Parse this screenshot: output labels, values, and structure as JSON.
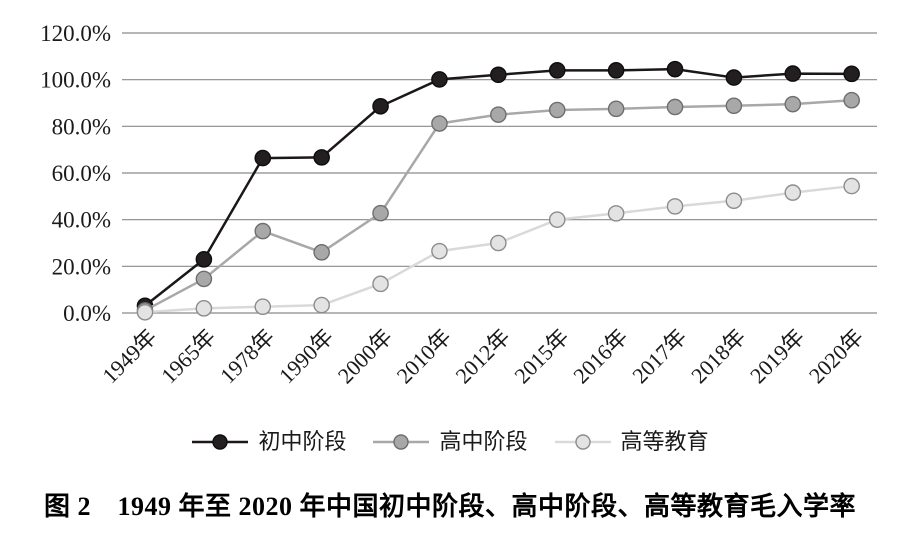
{
  "figure": {
    "caption": "图 2　1949 年至 2020 年中国初中阶段、高中阶段、高等教育毛入学率"
  },
  "colors": {
    "background": "#ffffff",
    "grid": "#8a8a8a",
    "axis_text": "#1a1a1a"
  },
  "chart_data": {
    "type": "line",
    "title": "",
    "xlabel": "",
    "ylabel": "",
    "ylim": [
      0,
      120
    ],
    "grid": "horizontal",
    "legend_position": "bottom",
    "categories": [
      "1949年",
      "1965年",
      "1978年",
      "1990年",
      "2000年",
      "2010年",
      "2012年",
      "2015年",
      "2016年",
      "2017年",
      "2018年",
      "2019年",
      "2020年"
    ],
    "y_ticks": [
      {
        "value": 0,
        "label": "0.0%"
      },
      {
        "value": 20,
        "label": "20.0%"
      },
      {
        "value": 40,
        "label": "40.0%"
      },
      {
        "value": 60,
        "label": "60.0%"
      },
      {
        "value": 80,
        "label": "80.0%"
      },
      {
        "value": 100,
        "label": "100.0%"
      },
      {
        "value": 120,
        "label": "120.0%"
      }
    ],
    "series": [
      {
        "name": "初中阶段",
        "values": [
          3.1,
          23.0,
          66.4,
          66.7,
          88.6,
          100.1,
          102.1,
          104.0,
          104.0,
          104.5,
          100.9,
          102.6,
          102.5
        ],
        "line_color": "#1c1719",
        "marker_fill": "#231f20",
        "marker_stroke": "#0d0d0d"
      },
      {
        "name": "高中阶段",
        "values": [
          1.1,
          14.6,
          35.1,
          26.0,
          42.8,
          81.2,
          85.0,
          87.0,
          87.5,
          88.3,
          88.8,
          89.5,
          91.2
        ],
        "line_color": "#a8a8a8",
        "marker_fill": "#a8a8a8",
        "marker_stroke": "#6e6e6e"
      },
      {
        "name": "高等教育",
        "values": [
          0.3,
          2.0,
          2.7,
          3.4,
          12.5,
          26.5,
          30.0,
          40.0,
          42.7,
          45.7,
          48.1,
          51.6,
          54.4
        ],
        "line_color": "#d9d9d9",
        "marker_fill": "#e3e3e3",
        "marker_stroke": "#8c8c8c"
      }
    ]
  }
}
